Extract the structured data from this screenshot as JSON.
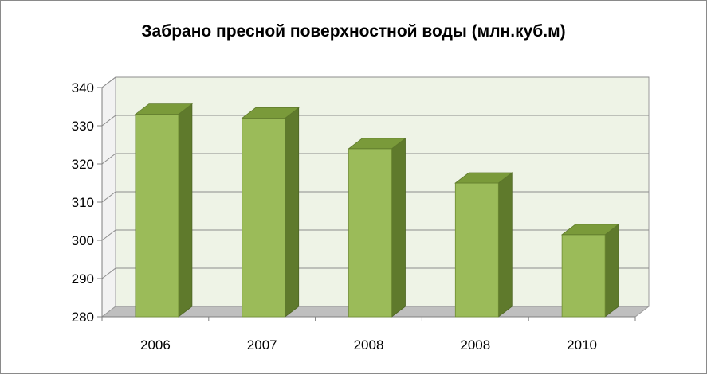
{
  "chart_data": {
    "type": "bar",
    "title": "Забрано пресной поверхностной воды (млн.куб.м)",
    "xlabel": "",
    "ylabel": "",
    "categories": [
      "2006",
      "2007",
      "2008",
      "2008",
      "2010"
    ],
    "values": [
      333,
      332,
      324,
      315,
      301.5
    ],
    "ylim": [
      280,
      340
    ],
    "yticks": [
      "340",
      "330",
      "320",
      "310",
      "300",
      "290",
      "280"
    ],
    "grid": true,
    "legend": "none",
    "style": "3d-column",
    "colors": {
      "bar_front": "#9bbb59",
      "bar_top": "#7a9a3a",
      "bar_side": "#5f7a2c",
      "wall_bg": "#eef3e6",
      "floor": "#bfbfbf",
      "gridline": "#8c8c8c"
    }
  }
}
